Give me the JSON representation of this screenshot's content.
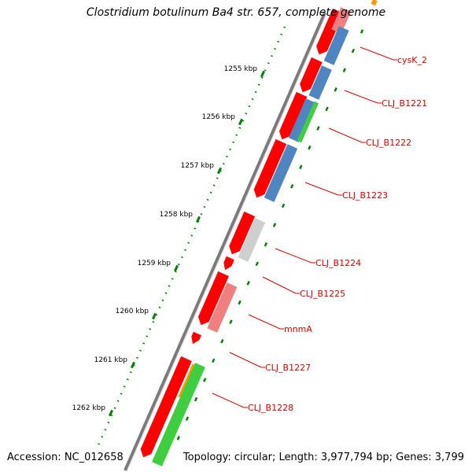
{
  "title": "Clostridium botulinum Ba4 str. 657, complete genome",
  "footer": {
    "accession": "Accession: NC_012658",
    "topology": "Topology: circular; Length: 3,977,794 bp; Genes: 3,799"
  },
  "scale_ticks": [
    "1255 kbp",
    "1256 kbp",
    "1257 kbp",
    "1258 kbp",
    "1259 kbp",
    "1260 kbp",
    "1261 kbp",
    "1262 kbp"
  ],
  "gene_labels": [
    "cysK_2",
    "CLJ_B1221",
    "CLJ_B1222",
    "CLJ_B1223",
    "CLJ_B1224",
    "CLJ_B1225",
    "mnmA",
    "CLJ_B1227",
    "CLJ_B1228"
  ],
  "colors": {
    "cds": "#ff0000",
    "gene_blue": "#4f86c2",
    "gene_green": "#3fce3f",
    "gene_pink": "#f08080",
    "gene_grey": "#cfcfcf",
    "gene_orange": "#ff9900",
    "backbone": "#777777",
    "tick_green": "#008000",
    "label_red": "#d40000"
  }
}
